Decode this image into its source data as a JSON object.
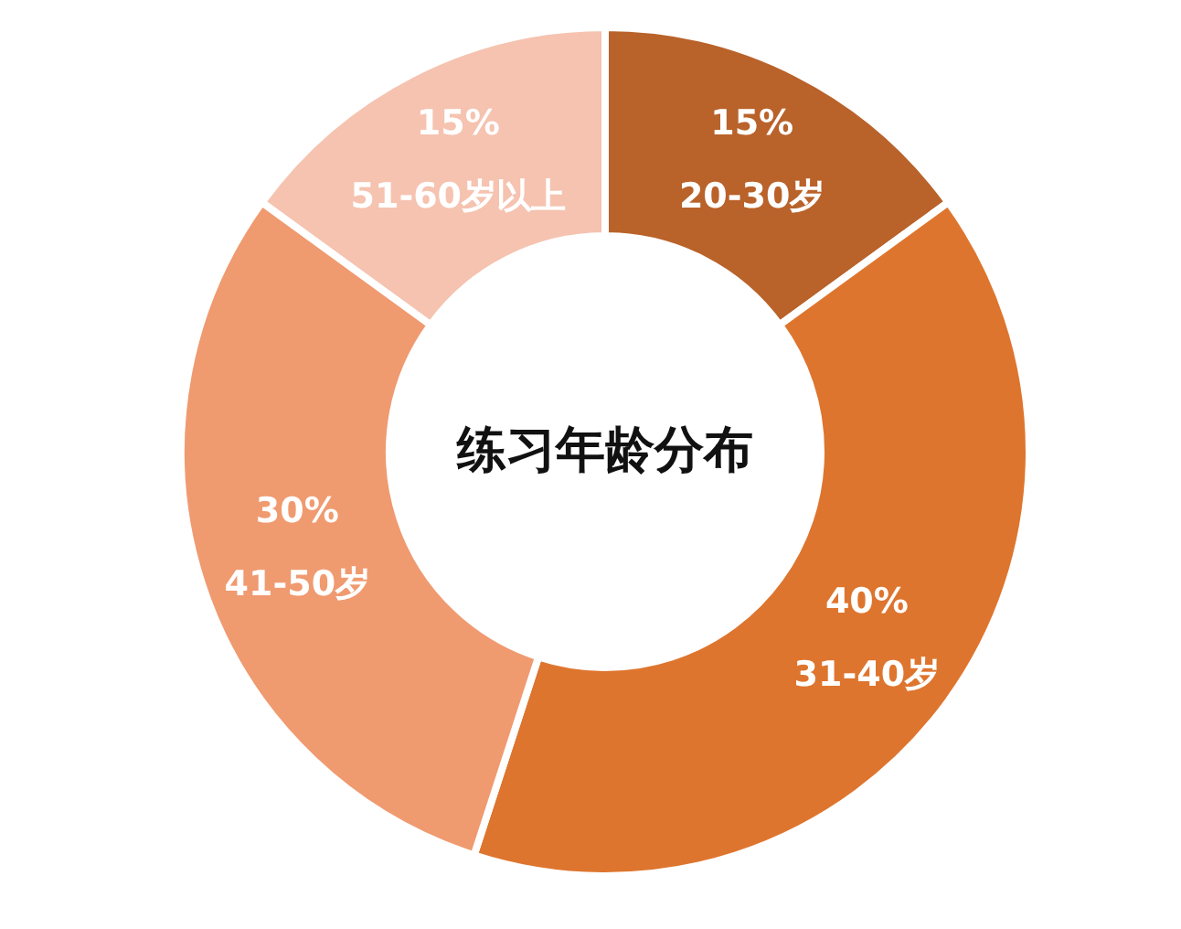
{
  "chart_data": {
    "type": "donut",
    "title": "练习年龄分布",
    "categories": [
      "20-30岁",
      "31-40岁",
      "41-50岁",
      "51-60岁以上"
    ],
    "values": [
      15,
      40,
      30,
      15
    ],
    "value_labels": [
      "15%",
      "40%",
      "30%",
      "15%"
    ],
    "colors": [
      "#b9622a",
      "#de752e",
      "#f09a70",
      "#f5c3b0"
    ]
  }
}
